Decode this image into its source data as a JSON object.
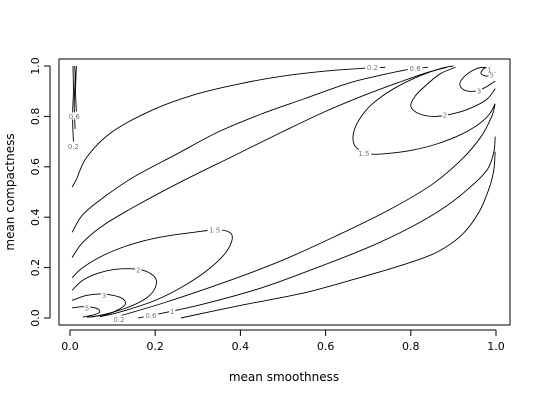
{
  "chart_data": {
    "type": "contour",
    "title": "",
    "xlabel": "mean smoothness",
    "ylabel": "mean compactness",
    "xlim": [
      0,
      1
    ],
    "ylim": [
      0,
      1
    ],
    "x_ticks": [
      "0.0",
      "0.2",
      "0.4",
      "0.6",
      "0.8",
      "1.0"
    ],
    "y_ticks": [
      "0.0",
      "0.2",
      "0.4",
      "0.6",
      "0.8",
      "1.0"
    ],
    "grid": false,
    "contour_levels": [
      "0.2",
      "0.6",
      "1",
      "1.5",
      "2",
      "3",
      "5"
    ],
    "contours": [
      {
        "level": "0.2",
        "points": [
          [
            0.005,
            0.52
          ],
          [
            0.015,
            0.55
          ],
          [
            0.04,
            0.64
          ],
          [
            0.1,
            0.74
          ],
          [
            0.2,
            0.83
          ],
          [
            0.3,
            0.89
          ],
          [
            0.4,
            0.93
          ],
          [
            0.5,
            0.96
          ],
          [
            0.6,
            0.98
          ],
          [
            0.68,
            0.99
          ],
          [
            0.74,
            0.995
          ]
        ]
      },
      {
        "level": "0.2",
        "points": [
          [
            0.26,
            0.0
          ],
          [
            0.4,
            0.05
          ],
          [
            0.55,
            0.1
          ],
          [
            0.68,
            0.16
          ],
          [
            0.78,
            0.21
          ],
          [
            0.86,
            0.26
          ],
          [
            0.92,
            0.33
          ],
          [
            0.96,
            0.42
          ],
          [
            0.985,
            0.52
          ],
          [
            0.995,
            0.59
          ],
          [
            0.998,
            0.66
          ]
        ]
      },
      {
        "level": "0.6",
        "points": [
          [
            0.005,
            0.34
          ],
          [
            0.03,
            0.41
          ],
          [
            0.08,
            0.48
          ],
          [
            0.15,
            0.56
          ],
          [
            0.25,
            0.65
          ],
          [
            0.35,
            0.74
          ],
          [
            0.45,
            0.81
          ],
          [
            0.55,
            0.87
          ],
          [
            0.65,
            0.93
          ],
          [
            0.72,
            0.96
          ],
          [
            0.79,
            0.985
          ],
          [
            0.84,
            0.995
          ]
        ]
      },
      {
        "level": "0.6",
        "points": [
          [
            0.16,
            0.0
          ],
          [
            0.3,
            0.05
          ],
          [
            0.45,
            0.12
          ],
          [
            0.58,
            0.2
          ],
          [
            0.7,
            0.28
          ],
          [
            0.8,
            0.36
          ],
          [
            0.88,
            0.44
          ],
          [
            0.94,
            0.52
          ],
          [
            0.98,
            0.59
          ],
          [
            0.995,
            0.66
          ],
          [
            0.998,
            0.72
          ]
        ]
      },
      {
        "level": "1",
        "points": [
          [
            0.005,
            0.24
          ],
          [
            0.03,
            0.3
          ],
          [
            0.08,
            0.37
          ],
          [
            0.16,
            0.45
          ],
          [
            0.26,
            0.54
          ],
          [
            0.38,
            0.64
          ],
          [
            0.5,
            0.74
          ],
          [
            0.6,
            0.82
          ],
          [
            0.7,
            0.89
          ],
          [
            0.78,
            0.94
          ],
          [
            0.84,
            0.975
          ],
          [
            0.885,
            0.995
          ]
        ]
      },
      {
        "level": "1",
        "points": [
          [
            0.1,
            0.0
          ],
          [
            0.22,
            0.06
          ],
          [
            0.36,
            0.14
          ],
          [
            0.5,
            0.23
          ],
          [
            0.63,
            0.33
          ],
          [
            0.75,
            0.43
          ],
          [
            0.85,
            0.53
          ],
          [
            0.92,
            0.63
          ],
          [
            0.965,
            0.72
          ],
          [
            0.99,
            0.8
          ],
          [
            0.998,
            0.85
          ]
        ]
      },
      {
        "level": "1.5",
        "points": [
          [
            0.005,
            0.16
          ],
          [
            0.03,
            0.2
          ],
          [
            0.08,
            0.25
          ],
          [
            0.14,
            0.29
          ],
          [
            0.21,
            0.32
          ],
          [
            0.29,
            0.34
          ],
          [
            0.35,
            0.35
          ],
          [
            0.38,
            0.33
          ],
          [
            0.37,
            0.27
          ],
          [
            0.33,
            0.2
          ],
          [
            0.27,
            0.13
          ],
          [
            0.2,
            0.07
          ],
          [
            0.12,
            0.025
          ],
          [
            0.07,
            0.005
          ]
        ]
      },
      {
        "level": "1.5",
        "points": [
          [
            0.998,
            0.85
          ],
          [
            0.985,
            0.81
          ],
          [
            0.96,
            0.77
          ],
          [
            0.92,
            0.73
          ],
          [
            0.86,
            0.69
          ],
          [
            0.8,
            0.665
          ],
          [
            0.74,
            0.652
          ],
          [
            0.7,
            0.652
          ],
          [
            0.67,
            0.68
          ],
          [
            0.665,
            0.73
          ],
          [
            0.68,
            0.79
          ],
          [
            0.71,
            0.85
          ],
          [
            0.76,
            0.91
          ],
          [
            0.82,
            0.96
          ],
          [
            0.87,
            0.99
          ],
          [
            0.9,
            1.0
          ]
        ]
      },
      {
        "level": "2",
        "points": [
          [
            0.005,
            0.11
          ],
          [
            0.03,
            0.15
          ],
          [
            0.07,
            0.18
          ],
          [
            0.12,
            0.195
          ],
          [
            0.17,
            0.19
          ],
          [
            0.2,
            0.16
          ],
          [
            0.2,
            0.12
          ],
          [
            0.18,
            0.08
          ],
          [
            0.14,
            0.045
          ],
          [
            0.09,
            0.018
          ],
          [
            0.05,
            0.004
          ]
        ]
      },
      {
        "level": "2",
        "points": [
          [
            0.998,
            0.91
          ],
          [
            0.98,
            0.87
          ],
          [
            0.95,
            0.84
          ],
          [
            0.91,
            0.815
          ],
          [
            0.86,
            0.8
          ],
          [
            0.82,
            0.81
          ],
          [
            0.8,
            0.84
          ],
          [
            0.81,
            0.88
          ],
          [
            0.84,
            0.93
          ],
          [
            0.87,
            0.97
          ],
          [
            0.905,
            0.995
          ]
        ]
      },
      {
        "level": "3",
        "points": [
          [
            0.005,
            0.07
          ],
          [
            0.04,
            0.09
          ],
          [
            0.08,
            0.095
          ],
          [
            0.12,
            0.08
          ],
          [
            0.13,
            0.055
          ],
          [
            0.11,
            0.03
          ],
          [
            0.08,
            0.012
          ],
          [
            0.04,
            0.003
          ]
        ]
      },
      {
        "level": "3",
        "points": [
          [
            0.998,
            0.94
          ],
          [
            0.975,
            0.915
          ],
          [
            0.95,
            0.9
          ],
          [
            0.925,
            0.905
          ],
          [
            0.915,
            0.93
          ],
          [
            0.93,
            0.965
          ],
          [
            0.955,
            0.99
          ],
          [
            0.975,
            0.995
          ]
        ]
      },
      {
        "level": "5",
        "points": [
          [
            0.005,
            0.04
          ],
          [
            0.03,
            0.045
          ],
          [
            0.06,
            0.04
          ],
          [
            0.07,
            0.025
          ],
          [
            0.055,
            0.012
          ],
          [
            0.03,
            0.004
          ]
        ]
      },
      {
        "level": "5",
        "points": [
          [
            0.998,
            0.975
          ],
          [
            0.98,
            0.96
          ],
          [
            0.965,
            0.97
          ],
          [
            0.972,
            0.99
          ],
          [
            0.99,
            1.0
          ]
        ]
      },
      {
        "level": "0.2",
        "points": [
          [
            0.008,
            0.7
          ],
          [
            0.006,
            0.8
          ],
          [
            0.008,
            0.9
          ],
          [
            0.007,
            1.0
          ]
        ]
      },
      {
        "level": "0.6",
        "points": [
          [
            0.012,
            0.75
          ],
          [
            0.01,
            0.85
          ],
          [
            0.012,
            0.95
          ],
          [
            0.011,
            1.0
          ]
        ]
      },
      {
        "level": "1",
        "points": [
          [
            0.015,
            0.82
          ],
          [
            0.013,
            0.9
          ],
          [
            0.015,
            1.0
          ]
        ]
      }
    ],
    "contour_labels": [
      {
        "text": "0.2",
        "x": 0.71,
        "y": 0.995
      },
      {
        "text": "0.6",
        "x": 0.81,
        "y": 0.99
      },
      {
        "text": "1.5",
        "x": 0.69,
        "y": 0.652
      },
      {
        "text": "2",
        "x": 0.88,
        "y": 0.805
      },
      {
        "text": "3",
        "x": 0.96,
        "y": 0.9
      },
      {
        "text": "5",
        "x": 0.99,
        "y": 0.965
      },
      {
        "text": "1",
        "x": 0.985,
        "y": 0.985
      },
      {
        "text": "1.5",
        "x": 0.34,
        "y": 0.35
      },
      {
        "text": "2",
        "x": 0.16,
        "y": 0.19
      },
      {
        "text": "3",
        "x": 0.08,
        "y": 0.09
      },
      {
        "text": "5",
        "x": 0.04,
        "y": 0.04
      },
      {
        "text": "0.2",
        "x": 0.115,
        "y": -0.005
      },
      {
        "text": "0.6",
        "x": 0.19,
        "y": 0.01
      },
      {
        "text": "1",
        "x": 0.24,
        "y": 0.025
      },
      {
        "text": "0.2",
        "x": 0.008,
        "y": 0.68
      },
      {
        "text": "0.6",
        "x": 0.01,
        "y": 0.8
      }
    ]
  }
}
